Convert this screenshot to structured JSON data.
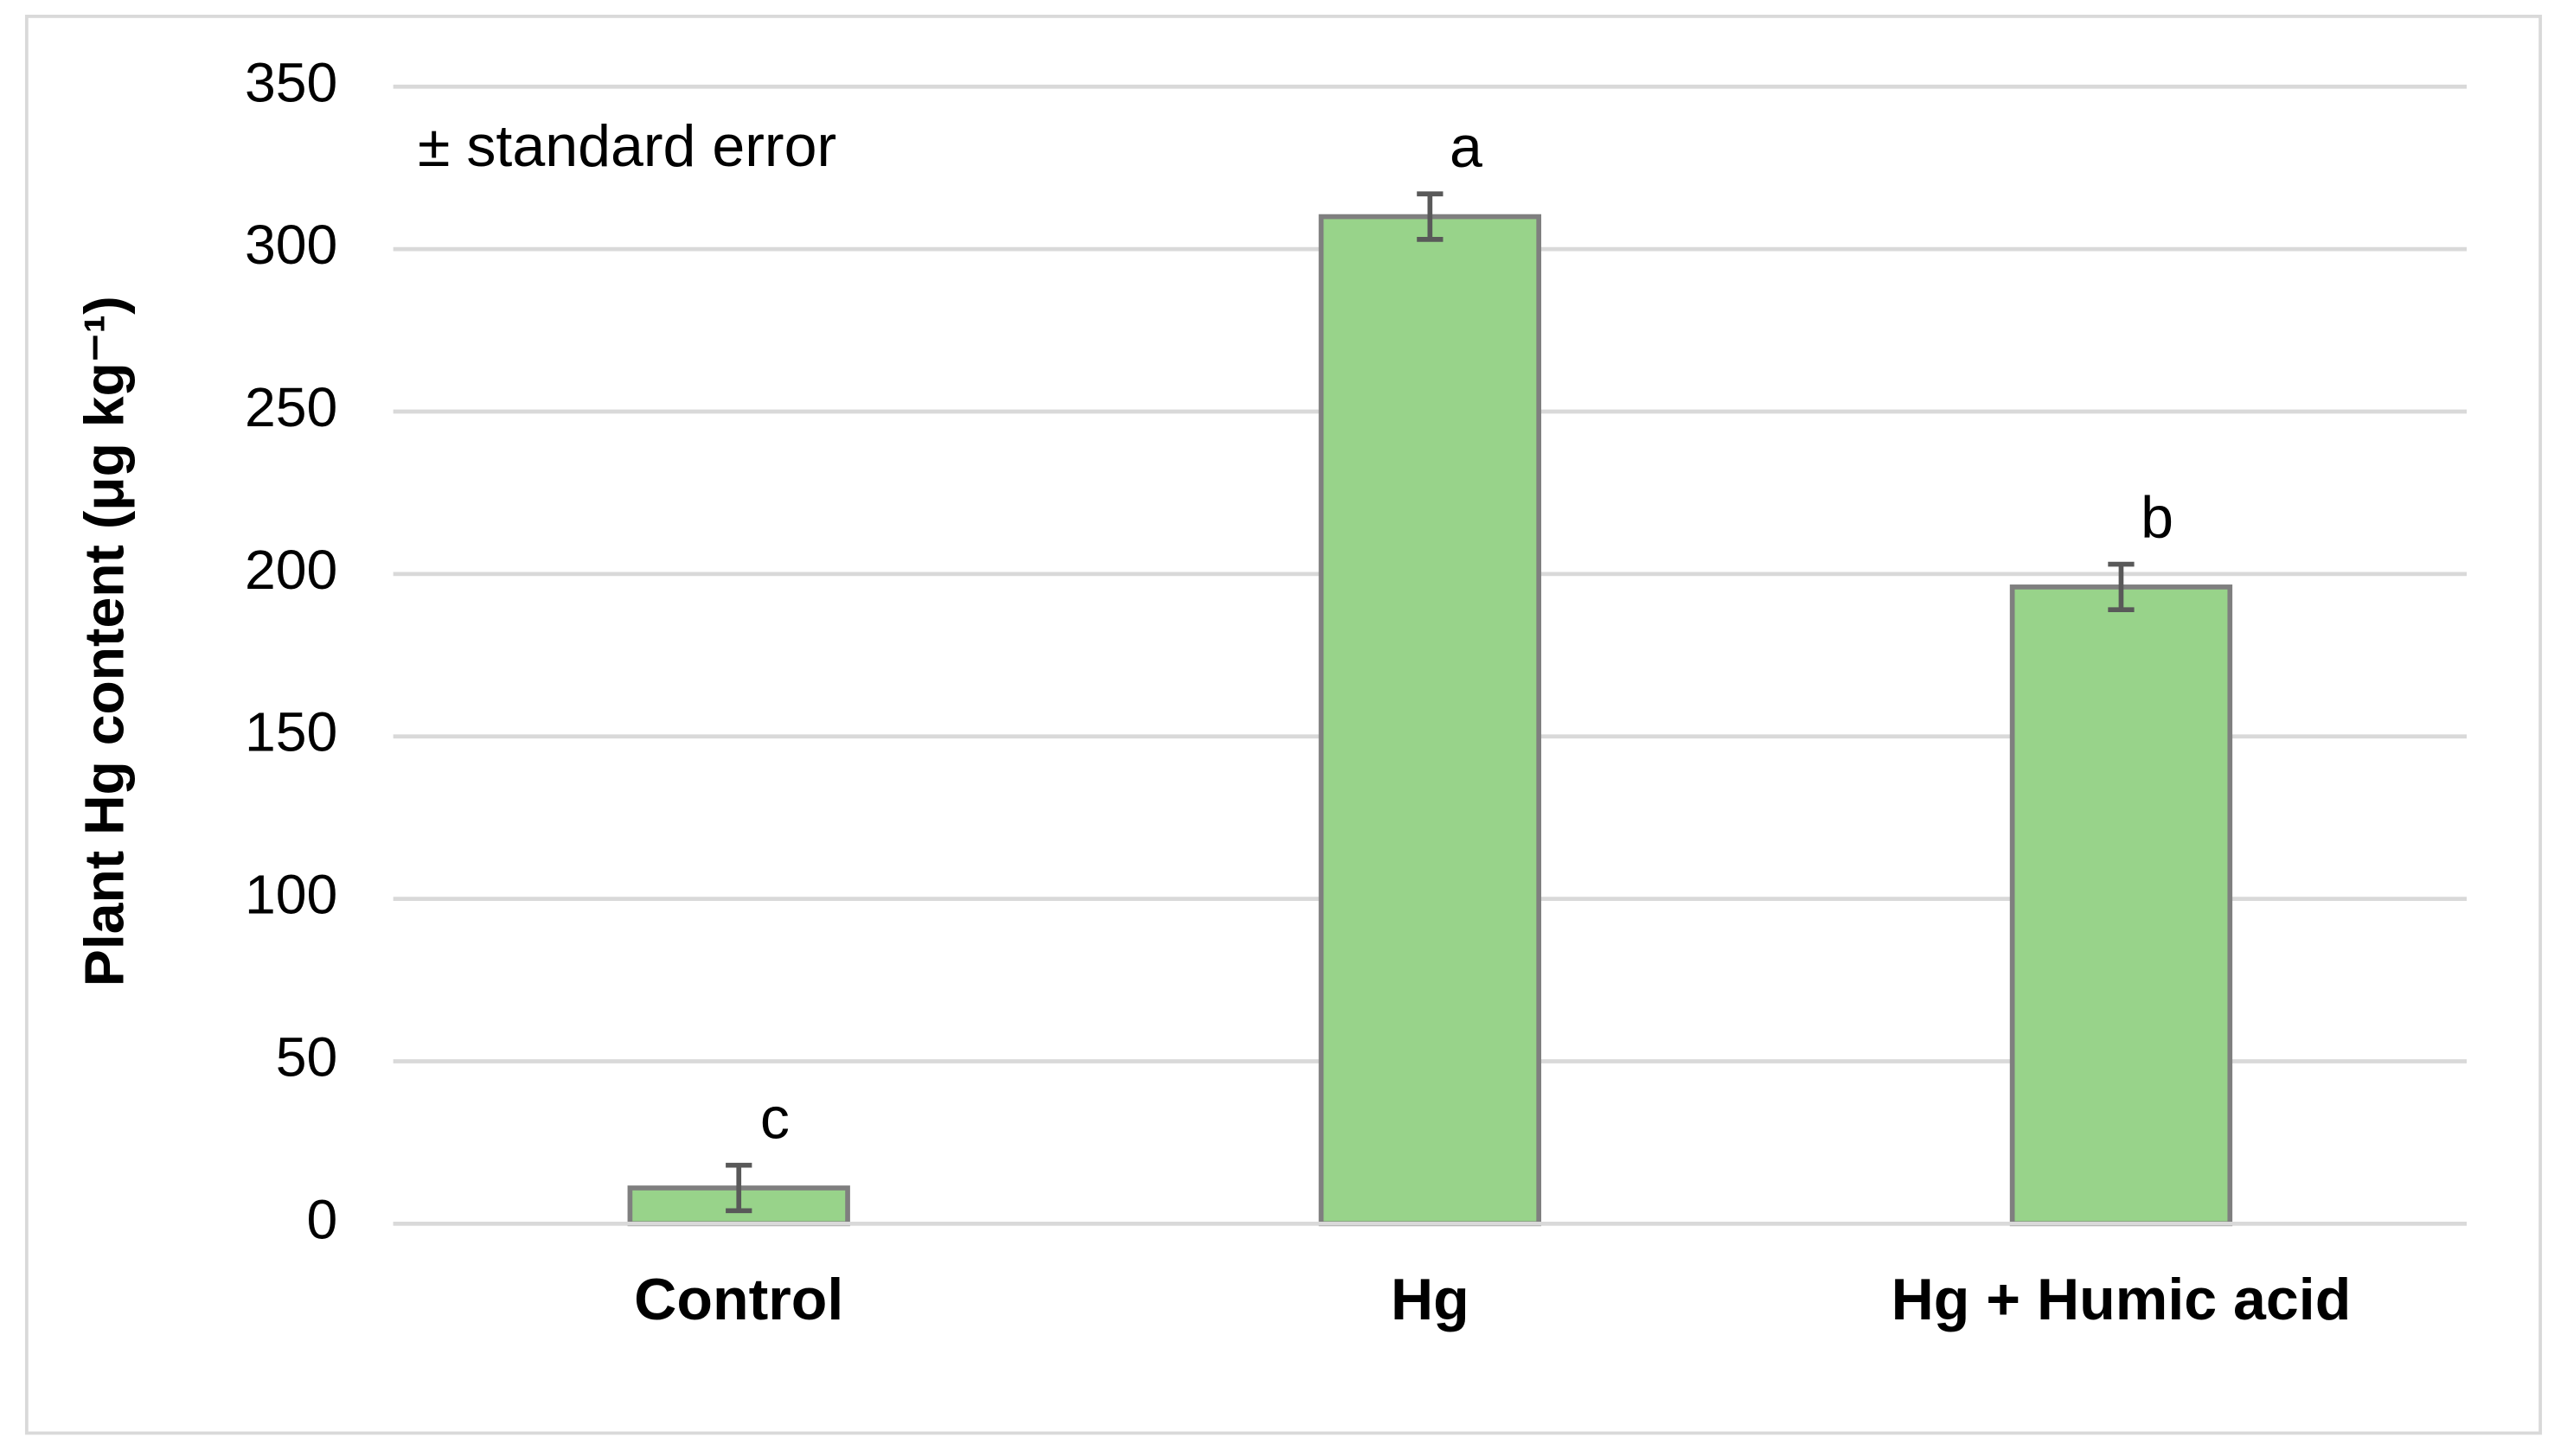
{
  "chart_data": {
    "type": "bar",
    "y_label": "Plant Hg content (μg kg⁻¹)",
    "annotation": "± standard error",
    "categories": [
      "Control",
      "Hg",
      "Hg + Humic acid"
    ],
    "values": [
      11,
      310,
      196
    ],
    "errors": [
      7,
      7,
      7
    ],
    "letters": [
      "c",
      "a",
      "b"
    ],
    "color": "#98d38a",
    "edge_color": "#7f7f7f",
    "ylim": [
      0,
      350
    ],
    "yticks": [
      0,
      50,
      100,
      150,
      200,
      250,
      300,
      350
    ],
    "grid": true
  }
}
